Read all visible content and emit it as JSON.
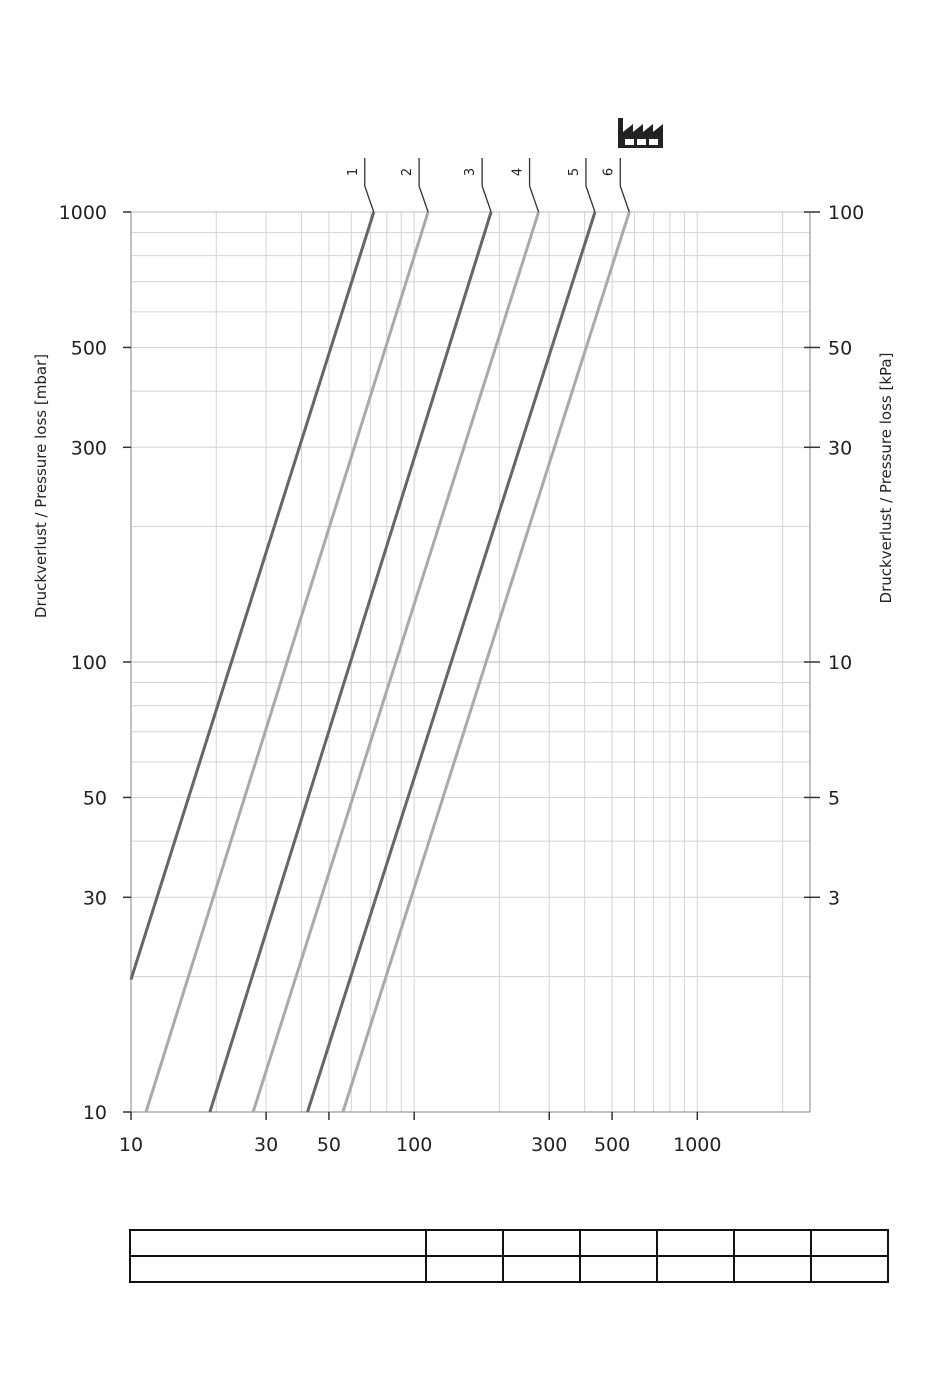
{
  "chart_data": {
    "type": "line",
    "scale": {
      "x": "log",
      "y": "log",
      "y_right": "log"
    },
    "xlim": [
      10,
      2500
    ],
    "ylim": [
      10,
      1000
    ],
    "grid": true,
    "y_left_ticks": [
      {
        "value": 1000,
        "label": "1000"
      },
      {
        "value": 500,
        "label": "500"
      },
      {
        "value": 300,
        "label": "300"
      },
      {
        "value": 100,
        "label": "100"
      },
      {
        "value": 50,
        "label": "50"
      },
      {
        "value": 30,
        "label": "30"
      },
      {
        "value": 10,
        "label": "10"
      }
    ],
    "y_right_ticks": [
      {
        "value": 1000,
        "label": "100"
      },
      {
        "value": 500,
        "label": "50"
      },
      {
        "value": 300,
        "label": "30"
      },
      {
        "value": 100,
        "label": "10"
      },
      {
        "value": 50,
        "label": "5"
      },
      {
        "value": 30,
        "label": "3"
      }
    ],
    "x_ticks": [
      {
        "value": 10,
        "label": "10"
      },
      {
        "value": 30,
        "label": "30"
      },
      {
        "value": 50,
        "label": "50"
      },
      {
        "value": 100,
        "label": "100"
      },
      {
        "value": 300,
        "label": "300"
      },
      {
        "value": 500,
        "label": "500"
      },
      {
        "value": 1000,
        "label": "1000"
      }
    ],
    "ylabel_left": "Druckverlust / Pressure loss [mbar]",
    "ylabel_right": "Druckverlust / Pressure loss [kPa]",
    "series": [
      {
        "name": "1",
        "color": "#666666",
        "points": [
          [
            10,
            19.7
          ],
          [
            72,
            1000
          ]
        ]
      },
      {
        "name": "2",
        "color": "#aaaaaa",
        "points": [
          [
            11.3,
            10
          ],
          [
            112,
            1000
          ]
        ]
      },
      {
        "name": "3",
        "color": "#666666",
        "points": [
          [
            19,
            10
          ],
          [
            187,
            1000
          ]
        ]
      },
      {
        "name": "4",
        "color": "#aaaaaa",
        "points": [
          [
            27,
            10
          ],
          [
            275,
            1000
          ]
        ]
      },
      {
        "name": "5",
        "color": "#666666",
        "points": [
          [
            42,
            10
          ],
          [
            435,
            1000
          ]
        ]
      },
      {
        "name": "6",
        "color": "#aaaaaa",
        "points": [
          [
            56,
            10
          ],
          [
            575,
            1000
          ]
        ]
      }
    ],
    "curve_labels": [
      {
        "label": "1",
        "end_x": 72
      },
      {
        "label": "2",
        "end_x": 112
      },
      {
        "label": "3",
        "end_x": 187
      },
      {
        "label": "4",
        "end_x": 275
      },
      {
        "label": "5",
        "end_x": 435
      },
      {
        "label": "6",
        "end_x": 575
      }
    ],
    "legend_table": {
      "rows": 2,
      "cols": 7
    }
  },
  "icons": {
    "factory": "factory-icon"
  }
}
